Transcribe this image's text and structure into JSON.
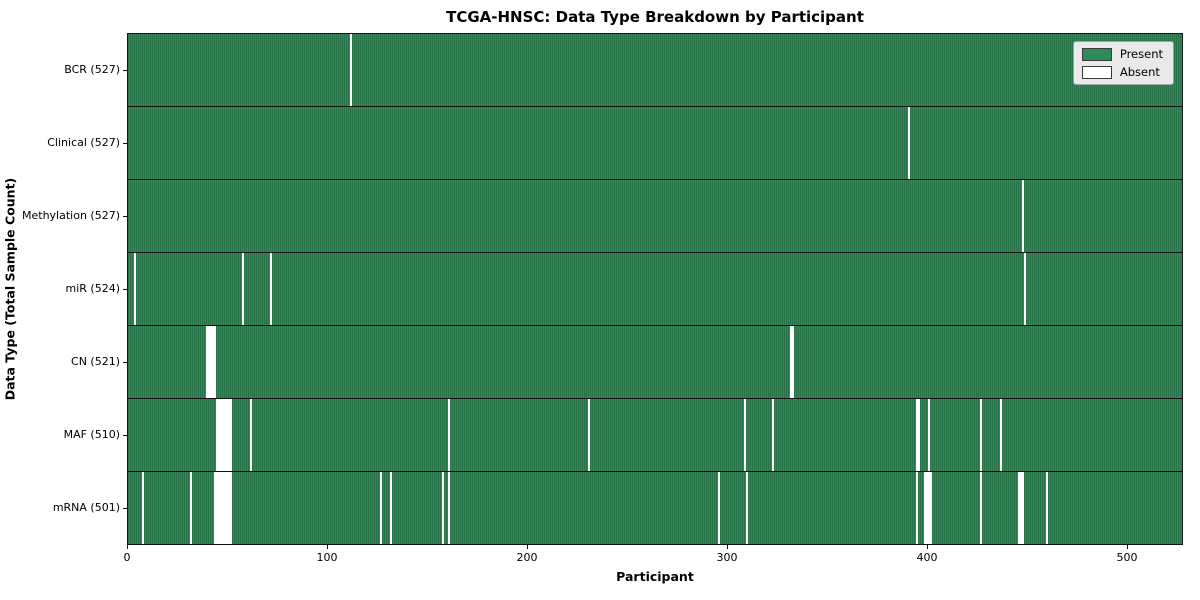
{
  "chart_data": {
    "type": "heatmap",
    "title": "TCGA-HNSC: Data Type Breakdown by Participant",
    "xlabel": "Participant",
    "ylabel": "Data Type (Total Sample Count)",
    "x_ticks": [
      0,
      100,
      200,
      300,
      400,
      500
    ],
    "xlim": [
      0,
      528
    ],
    "total_participants": 528,
    "grid": false,
    "legend_position": "upper right",
    "colors": {
      "present": "#2e8b57",
      "present_edge": "#1e5c38",
      "absent": "#ffffff",
      "legend_background": "#e9e9e9"
    },
    "legend": [
      {
        "label": "Present",
        "color": "#2e8b57"
      },
      {
        "label": "Absent",
        "color": "#ffffff"
      }
    ],
    "rows": [
      {
        "label": "BCR (527)",
        "data_type": "BCR",
        "present_count": 527,
        "absent_participants": [
          111
        ]
      },
      {
        "label": "Clinical (527)",
        "data_type": "Clinical",
        "present_count": 527,
        "absent_participants": [
          390
        ]
      },
      {
        "label": "Methylation (527)",
        "data_type": "Methylation",
        "present_count": 527,
        "absent_participants": [
          447
        ]
      },
      {
        "label": "miR (524)",
        "data_type": "miR",
        "present_count": 524,
        "absent_participants": [
          3,
          57,
          71,
          448
        ]
      },
      {
        "label": "CN (521)",
        "data_type": "CN",
        "present_count": 521,
        "absent_participants": [
          39,
          40,
          41,
          42,
          43,
          331,
          332
        ]
      },
      {
        "label": "MAF (510)",
        "data_type": "MAF",
        "present_count": 510,
        "absent_participants": [
          44,
          45,
          46,
          47,
          48,
          49,
          50,
          51,
          61,
          160,
          230,
          308,
          322,
          394,
          395,
          400,
          426,
          436
        ]
      },
      {
        "label": "mRNA (501)",
        "data_type": "mRNA",
        "present_count": 501,
        "absent_participants": [
          7,
          31,
          43,
          44,
          45,
          46,
          47,
          48,
          49,
          50,
          51,
          126,
          131,
          157,
          160,
          295,
          309,
          394,
          398,
          399,
          400,
          401,
          426,
          445,
          446,
          447,
          459
        ]
      }
    ]
  }
}
